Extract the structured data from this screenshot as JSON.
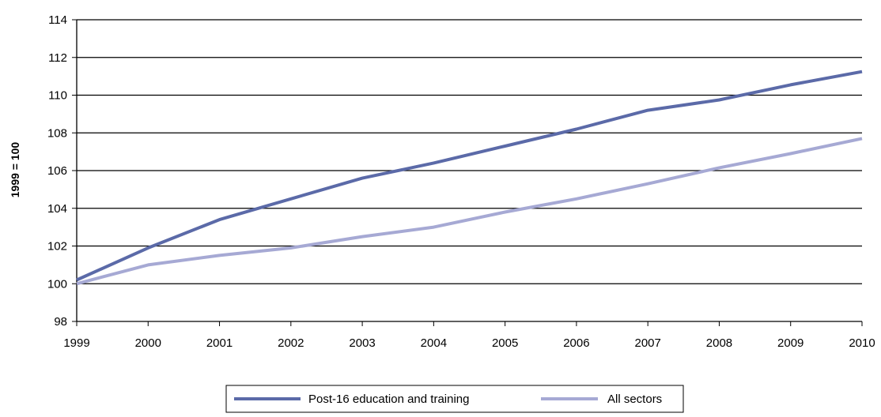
{
  "chart_data": {
    "type": "line",
    "ylabel": "1999 = 100",
    "xlabel": "",
    "ylim": [
      98,
      114
    ],
    "yticks": [
      "98",
      "100",
      "102",
      "104",
      "106",
      "108",
      "110",
      "112",
      "114"
    ],
    "x": [
      "1999",
      "2000",
      "2001",
      "2002",
      "2003",
      "2004",
      "2005",
      "2006",
      "2007",
      "2008",
      "2009",
      "2010"
    ],
    "grid": "horizontal",
    "legend_position": "bottom-center",
    "series": [
      {
        "name": "Post-16 education and training",
        "color": "#5b6aa8",
        "values": [
          100.2,
          101.9,
          103.4,
          104.5,
          105.6,
          106.4,
          107.3,
          108.2,
          109.2,
          109.75,
          110.55,
          111.25
        ]
      },
      {
        "name": "All sectors",
        "color": "#a6a9d4",
        "values": [
          100.0,
          101.0,
          101.5,
          101.9,
          102.5,
          103.0,
          103.8,
          104.5,
          105.3,
          106.15,
          106.9,
          107.7
        ]
      }
    ]
  }
}
